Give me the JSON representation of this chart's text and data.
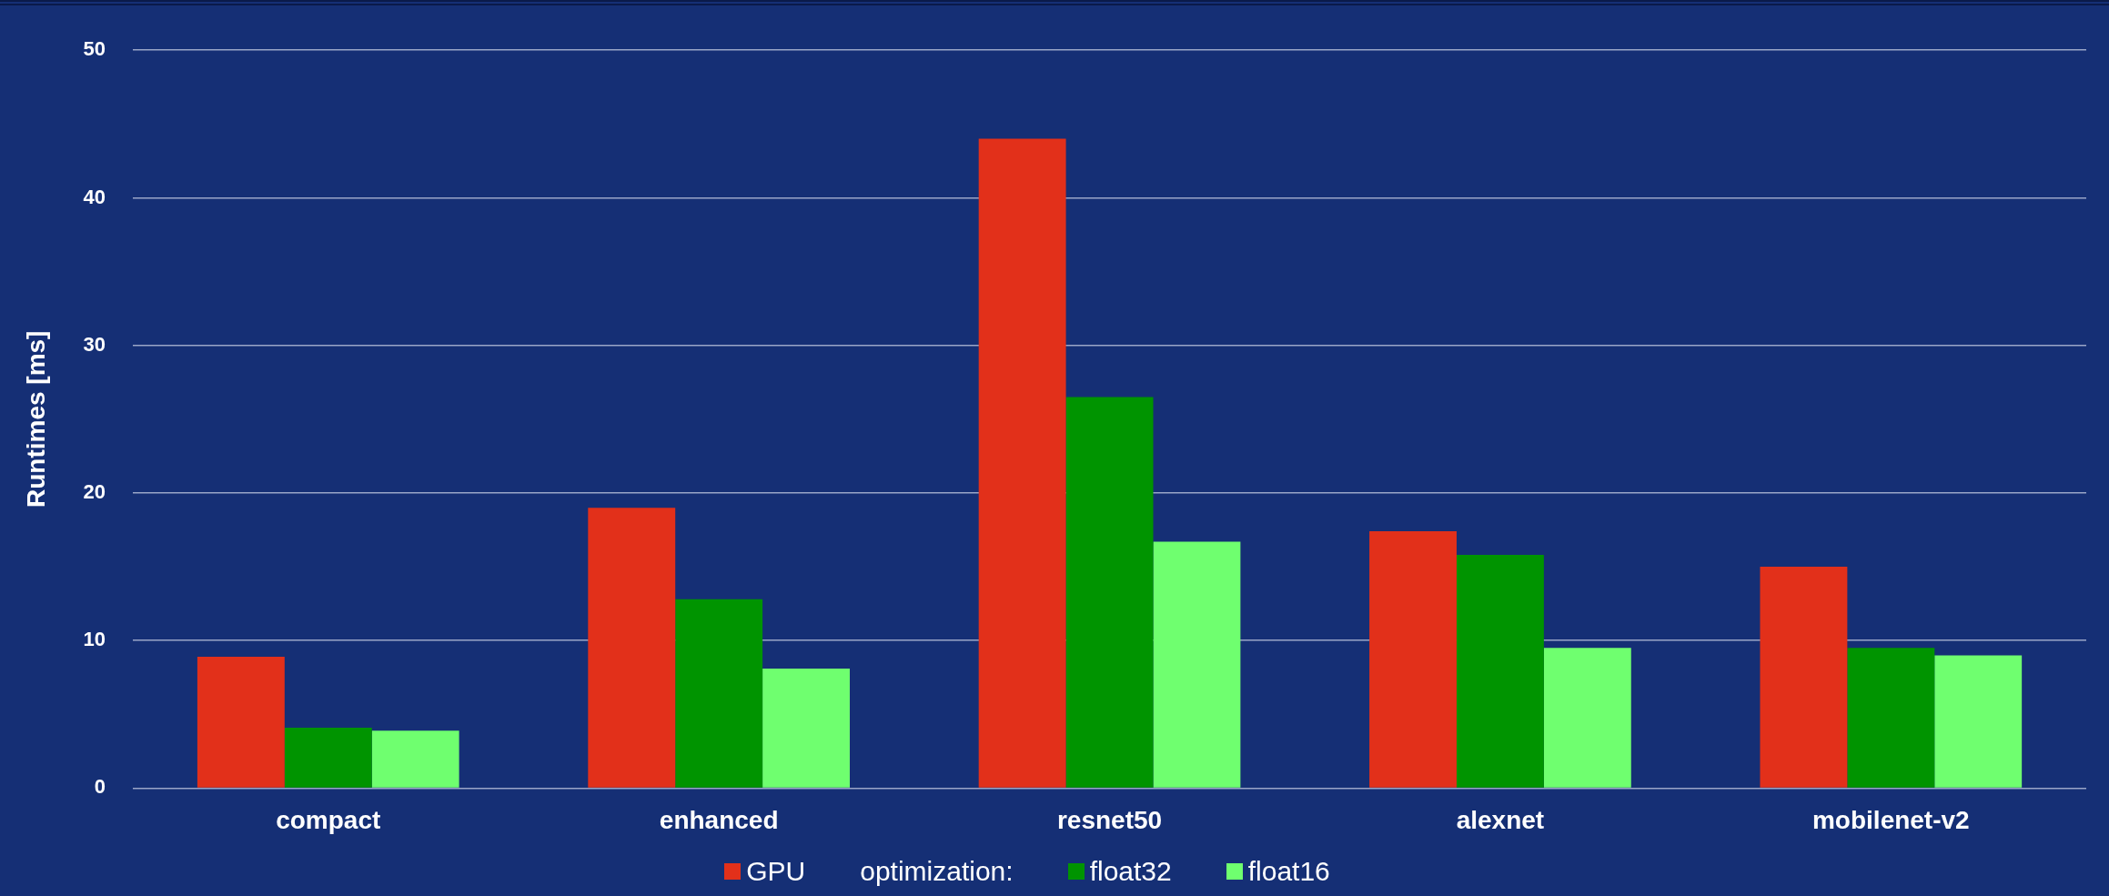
{
  "chart_data": {
    "type": "bar",
    "ylabel": "Runtimes [ms]",
    "legend_title": "optimization:",
    "categories": [
      "compact",
      "enhanced",
      "resnet50",
      "alexnet",
      "mobilenet-v2"
    ],
    "series": [
      {
        "name": "GPU",
        "color": "#e2301a",
        "values": [
          8.9,
          19.0,
          44.0,
          17.4,
          15.0
        ]
      },
      {
        "name": "float32",
        "color": "#009400",
        "values": [
          4.1,
          12.8,
          26.5,
          15.8,
          9.5
        ]
      },
      {
        "name": "float16",
        "color": "#6fff6f",
        "values": [
          3.9,
          8.1,
          16.7,
          9.5,
          9.0
        ]
      }
    ],
    "ylim": [
      0,
      50
    ],
    "yticks": [
      0,
      10,
      20,
      30,
      40,
      50
    ],
    "grid": "y",
    "legend": "bottom"
  }
}
